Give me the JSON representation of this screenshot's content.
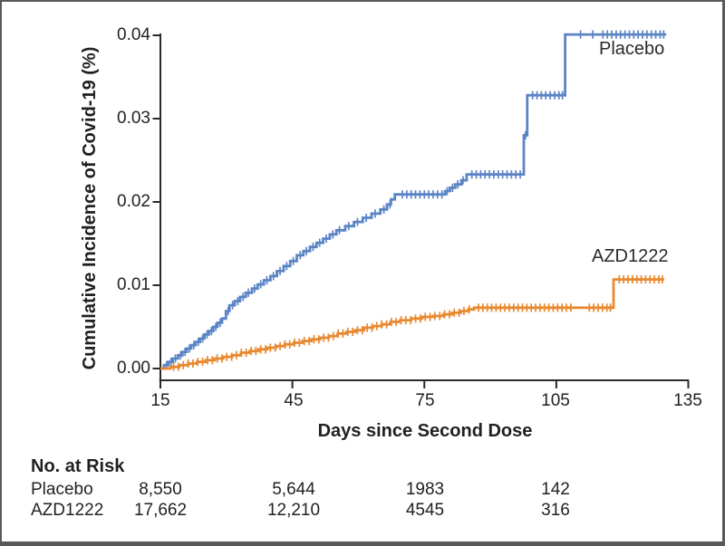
{
  "figure": {
    "y_axis": {
      "title": "Cumulative Incidence of Covid-19 (%)",
      "tick_labels": [
        "0.04",
        "0.03",
        "0.02",
        "0.01",
        "0.00"
      ]
    },
    "x_axis": {
      "title": "Days since Second Dose",
      "tick_labels": [
        "15",
        "45",
        "75",
        "105",
        "135"
      ]
    },
    "curve_labels": {
      "placebo": "Placebo",
      "azd1222": "AZD1222"
    }
  },
  "risk_table": {
    "title": "No. at Risk",
    "rows": [
      {
        "label": "Placebo",
        "values": [
          "8,550",
          "5,644",
          "1983",
          "142"
        ]
      },
      {
        "label": "AZD1222",
        "values": [
          "17,662",
          "12,210",
          "4545",
          "316"
        ]
      }
    ]
  },
  "chart_data": {
    "type": "line",
    "subtype": "kaplan-meier-step",
    "title": "",
    "xlabel": "Days since Second Dose",
    "ylabel": "Cumulative Incidence of Covid-19 (%)",
    "xlim": [
      15,
      135
    ],
    "ylim": [
      0,
      0.04
    ],
    "x_ticks": [
      15,
      45,
      75,
      105,
      135
    ],
    "y_ticks": [
      0,
      0.01,
      0.02,
      0.03,
      0.04
    ],
    "grid": false,
    "legend_position": "inline-labels",
    "axis_color": "#2b2a29",
    "series": [
      {
        "name": "Placebo",
        "color": "#5b84c5",
        "end_day": 130,
        "steps": [
          [
            15,
            0
          ],
          [
            15.8,
            0.0004
          ],
          [
            16.8,
            0.0008
          ],
          [
            17.8,
            0.0012
          ],
          [
            19,
            0.0016
          ],
          [
            20,
            0.002
          ],
          [
            21,
            0.0024
          ],
          [
            22,
            0.0028
          ],
          [
            23,
            0.0032
          ],
          [
            24,
            0.0036
          ],
          [
            25,
            0.0041
          ],
          [
            26,
            0.0045
          ],
          [
            27,
            0.005
          ],
          [
            28,
            0.0055
          ],
          [
            29,
            0.006
          ],
          [
            29.9,
            0.0069
          ],
          [
            30.7,
            0.0076
          ],
          [
            31.9,
            0.0081
          ],
          [
            33.1,
            0.0086
          ],
          [
            34.4,
            0.0091
          ],
          [
            35.8,
            0.0096
          ],
          [
            37.1,
            0.0101
          ],
          [
            38.5,
            0.0106
          ],
          [
            40,
            0.0111
          ],
          [
            41.5,
            0.0117
          ],
          [
            43,
            0.0123
          ],
          [
            44.5,
            0.0129
          ],
          [
            46,
            0.0136
          ],
          [
            47.5,
            0.0141
          ],
          [
            49,
            0.0146
          ],
          [
            50.5,
            0.0151
          ],
          [
            52,
            0.0156
          ],
          [
            53.5,
            0.0161
          ],
          [
            55,
            0.0166
          ],
          [
            57,
            0.0171
          ],
          [
            59,
            0.0176
          ],
          [
            61,
            0.0181
          ],
          [
            63,
            0.0186
          ],
          [
            65,
            0.0191
          ],
          [
            66.5,
            0.0197
          ],
          [
            67.4,
            0.0203
          ],
          [
            68.3,
            0.0209
          ],
          [
            79.7,
            0.0213
          ],
          [
            80.8,
            0.0217
          ],
          [
            82,
            0.0221
          ],
          [
            83.4,
            0.0226
          ],
          [
            84.6,
            0.0233
          ],
          [
            97.6,
            0.028
          ],
          [
            98.4,
            0.0328
          ],
          [
            107,
            0.0401
          ]
        ],
        "censor_days": [
          16.4,
          17.4,
          18.4,
          19.6,
          20.6,
          21.6,
          22.6,
          23.6,
          24.6,
          25.6,
          26.6,
          27.6,
          28.6,
          30.4,
          31.4,
          32.6,
          33.8,
          35,
          36.4,
          37.8,
          39.2,
          40.7,
          42.2,
          43.7,
          45.2,
          46.8,
          48.2,
          49.7,
          51.2,
          52.7,
          54.2,
          55.7,
          57.8,
          59.8,
          61.8,
          63.8,
          65.8,
          67.2,
          70,
          71,
          72,
          73,
          74,
          75,
          76,
          77,
          78,
          79,
          80.2,
          81.4,
          82.6,
          83.8,
          85.8,
          86.8,
          87.8,
          88.8,
          89.8,
          90.8,
          91.8,
          92.8,
          93.8,
          94.8,
          95.8,
          96.8,
          98,
          99.6,
          100.6,
          101.6,
          102.6,
          103.6,
          104.6,
          105.6,
          106.4,
          110.5,
          113.3,
          115.6,
          116.6,
          117.6,
          118.6,
          119.6,
          120.6,
          121.6,
          122.6,
          123.6,
          124.6,
          125.6,
          126.6,
          127.6,
          128.6,
          129.4
        ]
      },
      {
        "name": "AZD1222",
        "color": "#e8892f",
        "end_day": 129.5,
        "steps": [
          [
            15,
            0
          ],
          [
            17.3,
            0.0002
          ],
          [
            19.3,
            0.0004
          ],
          [
            21.3,
            0.0006
          ],
          [
            23.3,
            0.0008
          ],
          [
            25.3,
            0.001
          ],
          [
            27.3,
            0.0012
          ],
          [
            29.3,
            0.0014
          ],
          [
            31.3,
            0.0016
          ],
          [
            33.3,
            0.0019
          ],
          [
            35.3,
            0.0021
          ],
          [
            37.3,
            0.0023
          ],
          [
            39.3,
            0.0025
          ],
          [
            41.3,
            0.0027
          ],
          [
            43.3,
            0.0029
          ],
          [
            45.3,
            0.0031
          ],
          [
            47.3,
            0.0033
          ],
          [
            49.3,
            0.0035
          ],
          [
            51.3,
            0.0037
          ],
          [
            53.3,
            0.0039
          ],
          [
            55.3,
            0.0042
          ],
          [
            57.3,
            0.0044
          ],
          [
            59.3,
            0.0046
          ],
          [
            61.3,
            0.0049
          ],
          [
            63.3,
            0.0051
          ],
          [
            65.3,
            0.0053
          ],
          [
            67.3,
            0.0056
          ],
          [
            69.5,
            0.0058
          ],
          [
            72,
            0.006
          ],
          [
            74.5,
            0.0062
          ],
          [
            77,
            0.0063
          ],
          [
            79.3,
            0.0065
          ],
          [
            81.3,
            0.0067
          ],
          [
            83.3,
            0.0069
          ],
          [
            85,
            0.0071
          ],
          [
            86.3,
            0.0073
          ],
          [
            118,
            0.0107
          ]
        ],
        "censor_days": [
          18,
          19.1,
          20.2,
          21.3,
          22.4,
          23.5,
          24.6,
          25.7,
          26.8,
          27.9,
          29,
          30.1,
          31.2,
          32.3,
          33.4,
          34.5,
          35.6,
          36.7,
          37.8,
          38.9,
          40,
          41.1,
          42.2,
          43.3,
          44.4,
          45.5,
          46.6,
          47.7,
          48.8,
          49.9,
          51,
          52.1,
          53.2,
          54.3,
          55.4,
          56.5,
          57.6,
          58.7,
          59.8,
          60.9,
          62,
          63.1,
          64.2,
          65.3,
          66.4,
          67.5,
          68.6,
          69.7,
          70.8,
          71.9,
          73,
          74.1,
          75.2,
          76.3,
          77.4,
          78.5,
          79.6,
          80.7,
          81.8,
          82.9,
          84,
          85.2,
          87.3,
          88.3,
          89.3,
          90.3,
          91.3,
          92.3,
          93.3,
          94.3,
          95.3,
          96.3,
          97.3,
          98.3,
          99.3,
          100.3,
          101.3,
          102.3,
          103.3,
          104.3,
          105.3,
          106.3,
          107.3,
          108.3,
          112.5,
          113.5,
          114.5,
          115.5,
          116.5,
          117.3,
          119.3,
          120.3,
          121.3,
          122.3,
          123.3,
          124.3,
          125.3,
          126.3,
          127.3,
          128.3,
          129.1
        ]
      }
    ]
  }
}
